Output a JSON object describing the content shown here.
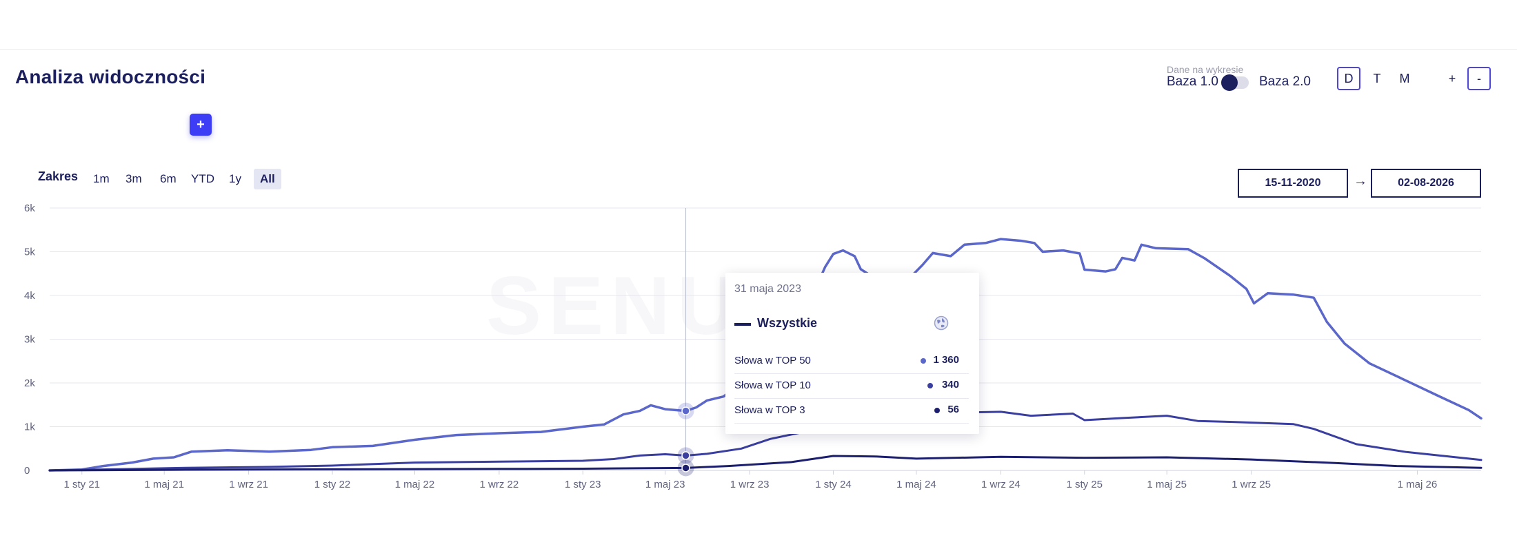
{
  "page": {
    "title": "Analiza widoczności",
    "add_label": "+"
  },
  "data_toggle": {
    "caption": "Dane na wykresie",
    "option_left": "Baza 1.0",
    "option_right": "Baza 2.0",
    "active": "left"
  },
  "period": {
    "options": [
      "D",
      "T",
      "M"
    ],
    "active": "D"
  },
  "zoom": {
    "in_label": "+",
    "out_label": "-"
  },
  "range": {
    "label": "Zakres",
    "options": [
      "1m",
      "3m",
      "6m",
      "YTD",
      "1y",
      "All"
    ],
    "active": "All"
  },
  "dates": {
    "from": "15-11-2020",
    "arrow": "→",
    "to": "02-08-2026"
  },
  "watermark": "SENUTO",
  "tooltip": {
    "date": "31 maja 2023",
    "series_name": "Wszystkie",
    "icon": "globe-icon",
    "rows": [
      {
        "label": "Słowa w TOP 50",
        "value": "1 360",
        "color": "#5b67c9"
      },
      {
        "label": "Słowa w TOP 10",
        "value": "340",
        "color": "#3a3e9e"
      },
      {
        "label": "Słowa w TOP 3",
        "value": "56",
        "color": "#1c1f6e"
      }
    ]
  },
  "chart_data": {
    "type": "line",
    "xlabel": "",
    "ylabel": "",
    "ylim": [
      0,
      6000
    ],
    "x_range": [
      "2020-11-15",
      "2026-08-02"
    ],
    "y_ticks": [
      0,
      1000,
      2000,
      3000,
      4000,
      5000,
      6000
    ],
    "y_tick_labels": [
      "0",
      "1k",
      "2k",
      "3k",
      "4k",
      "5k",
      "6k"
    ],
    "x_ticks": [
      {
        "date": "2021-01-01",
        "label": "1 sty 21"
      },
      {
        "date": "2021-05-01",
        "label": "1 maj 21"
      },
      {
        "date": "2021-09-01",
        "label": "1 wrz 21"
      },
      {
        "date": "2022-01-01",
        "label": "1 sty 22"
      },
      {
        "date": "2022-05-01",
        "label": "1 maj 22"
      },
      {
        "date": "2022-09-01",
        "label": "1 wrz 22"
      },
      {
        "date": "2023-01-01",
        "label": "1 sty 23"
      },
      {
        "date": "2023-05-01",
        "label": "1 maj 23"
      },
      {
        "date": "2023-09-01",
        "label": "1 wrz 23"
      },
      {
        "date": "2024-01-01",
        "label": "1 sty 24"
      },
      {
        "date": "2024-05-01",
        "label": "1 maj 24"
      },
      {
        "date": "2024-09-01",
        "label": "1 wrz 24"
      },
      {
        "date": "2025-01-01",
        "label": "1 sty 25"
      },
      {
        "date": "2025-05-01",
        "label": "1 maj 25"
      },
      {
        "date": "2025-09-01",
        "label": "1 wrz 25"
      },
      {
        "date": "2026-05-01",
        "label": "1 maj 26"
      }
    ],
    "grid": true,
    "crosshair_date": "2023-05-31",
    "series": [
      {
        "name": "Słowa w TOP 50",
        "color": "#5b67c9",
        "points": [
          [
            "2020-11-15",
            0
          ],
          [
            "2021-01-01",
            20
          ],
          [
            "2021-02-01",
            100
          ],
          [
            "2021-03-15",
            180
          ],
          [
            "2021-04-15",
            270
          ],
          [
            "2021-05-15",
            300
          ],
          [
            "2021-06-10",
            430
          ],
          [
            "2021-08-01",
            460
          ],
          [
            "2021-10-01",
            430
          ],
          [
            "2021-12-01",
            470
          ],
          [
            "2022-01-01",
            530
          ],
          [
            "2022-03-01",
            560
          ],
          [
            "2022-05-01",
            700
          ],
          [
            "2022-07-01",
            810
          ],
          [
            "2022-09-01",
            850
          ],
          [
            "2022-11-01",
            880
          ],
          [
            "2023-01-01",
            1000
          ],
          [
            "2023-02-01",
            1050
          ],
          [
            "2023-03-01",
            1280
          ],
          [
            "2023-03-25",
            1360
          ],
          [
            "2023-04-10",
            1490
          ],
          [
            "2023-05-01",
            1400
          ],
          [
            "2023-05-31",
            1360
          ],
          [
            "2023-06-15",
            1440
          ],
          [
            "2023-07-01",
            1600
          ],
          [
            "2023-07-25",
            1690
          ],
          [
            "2023-08-20",
            2000
          ],
          [
            "2023-09-15",
            2260
          ],
          [
            "2023-10-15",
            2800
          ],
          [
            "2023-11-10",
            3400
          ],
          [
            "2023-12-01",
            3980
          ],
          [
            "2023-12-20",
            4650
          ],
          [
            "2024-01-01",
            4950
          ],
          [
            "2024-01-15",
            5030
          ],
          [
            "2024-02-01",
            4900
          ],
          [
            "2024-02-10",
            4600
          ],
          [
            "2024-03-01",
            4400
          ],
          [
            "2024-03-25",
            4200
          ],
          [
            "2024-04-20",
            4380
          ],
          [
            "2024-05-10",
            4700
          ],
          [
            "2024-05-25",
            4970
          ],
          [
            "2024-06-20",
            4900
          ],
          [
            "2024-07-10",
            5160
          ],
          [
            "2024-08-10",
            5200
          ],
          [
            "2024-09-01",
            5290
          ],
          [
            "2024-10-01",
            5250
          ],
          [
            "2024-10-20",
            5200
          ],
          [
            "2024-11-01",
            5000
          ],
          [
            "2024-12-01",
            5030
          ],
          [
            "2024-12-25",
            4960
          ],
          [
            "2025-01-01",
            4590
          ],
          [
            "2025-02-01",
            4550
          ],
          [
            "2025-02-15",
            4600
          ],
          [
            "2025-02-25",
            4860
          ],
          [
            "2025-03-15",
            4800
          ],
          [
            "2025-03-25",
            5160
          ],
          [
            "2025-04-15",
            5080
          ],
          [
            "2025-06-01",
            5060
          ],
          [
            "2025-06-25",
            4850
          ],
          [
            "2025-08-01",
            4450
          ],
          [
            "2025-08-25",
            4150
          ],
          [
            "2025-09-05",
            3820
          ],
          [
            "2025-09-25",
            4050
          ],
          [
            "2025-11-01",
            4020
          ],
          [
            "2025-12-01",
            3950
          ],
          [
            "2025-12-20",
            3400
          ],
          [
            "2026-01-15",
            2900
          ],
          [
            "2026-02-20",
            2450
          ],
          [
            "2026-04-15",
            2050
          ],
          [
            "2026-06-01",
            1700
          ],
          [
            "2026-07-15",
            1380
          ],
          [
            "2026-08-02",
            1190
          ]
        ]
      },
      {
        "name": "Słowa w TOP 10",
        "color": "#3a3e9e",
        "points": [
          [
            "2020-11-15",
            0
          ],
          [
            "2021-03-01",
            30
          ],
          [
            "2021-06-01",
            60
          ],
          [
            "2021-10-01",
            80
          ],
          [
            "2022-01-01",
            110
          ],
          [
            "2022-05-01",
            180
          ],
          [
            "2022-09-01",
            200
          ],
          [
            "2023-01-01",
            220
          ],
          [
            "2023-02-15",
            260
          ],
          [
            "2023-03-25",
            340
          ],
          [
            "2023-05-01",
            370
          ],
          [
            "2023-05-31",
            340
          ],
          [
            "2023-07-01",
            380
          ],
          [
            "2023-08-20",
            500
          ],
          [
            "2023-10-01",
            720
          ],
          [
            "2023-12-01",
            920
          ],
          [
            "2024-01-15",
            1030
          ],
          [
            "2024-03-01",
            1150
          ],
          [
            "2024-05-01",
            1260
          ],
          [
            "2024-07-01",
            1320
          ],
          [
            "2024-09-01",
            1340
          ],
          [
            "2024-10-15",
            1250
          ],
          [
            "2024-12-15",
            1300
          ],
          [
            "2025-01-01",
            1150
          ],
          [
            "2025-03-01",
            1200
          ],
          [
            "2025-05-01",
            1250
          ],
          [
            "2025-06-15",
            1130
          ],
          [
            "2025-08-01",
            1110
          ],
          [
            "2025-11-01",
            1060
          ],
          [
            "2025-12-01",
            950
          ],
          [
            "2026-02-01",
            600
          ],
          [
            "2026-04-15",
            420
          ],
          [
            "2026-08-02",
            240
          ]
        ]
      },
      {
        "name": "Słowa w TOP 3",
        "color": "#1c1f6e",
        "points": [
          [
            "2020-11-15",
            0
          ],
          [
            "2021-06-01",
            15
          ],
          [
            "2022-01-01",
            25
          ],
          [
            "2022-09-01",
            35
          ],
          [
            "2023-01-01",
            40
          ],
          [
            "2023-05-31",
            56
          ],
          [
            "2023-08-01",
            100
          ],
          [
            "2023-11-01",
            190
          ],
          [
            "2024-01-01",
            330
          ],
          [
            "2024-03-01",
            320
          ],
          [
            "2024-05-01",
            270
          ],
          [
            "2024-09-01",
            310
          ],
          [
            "2025-01-01",
            290
          ],
          [
            "2025-05-01",
            300
          ],
          [
            "2025-09-01",
            250
          ],
          [
            "2026-01-01",
            170
          ],
          [
            "2026-04-01",
            100
          ],
          [
            "2026-08-02",
            60
          ]
        ]
      }
    ]
  }
}
